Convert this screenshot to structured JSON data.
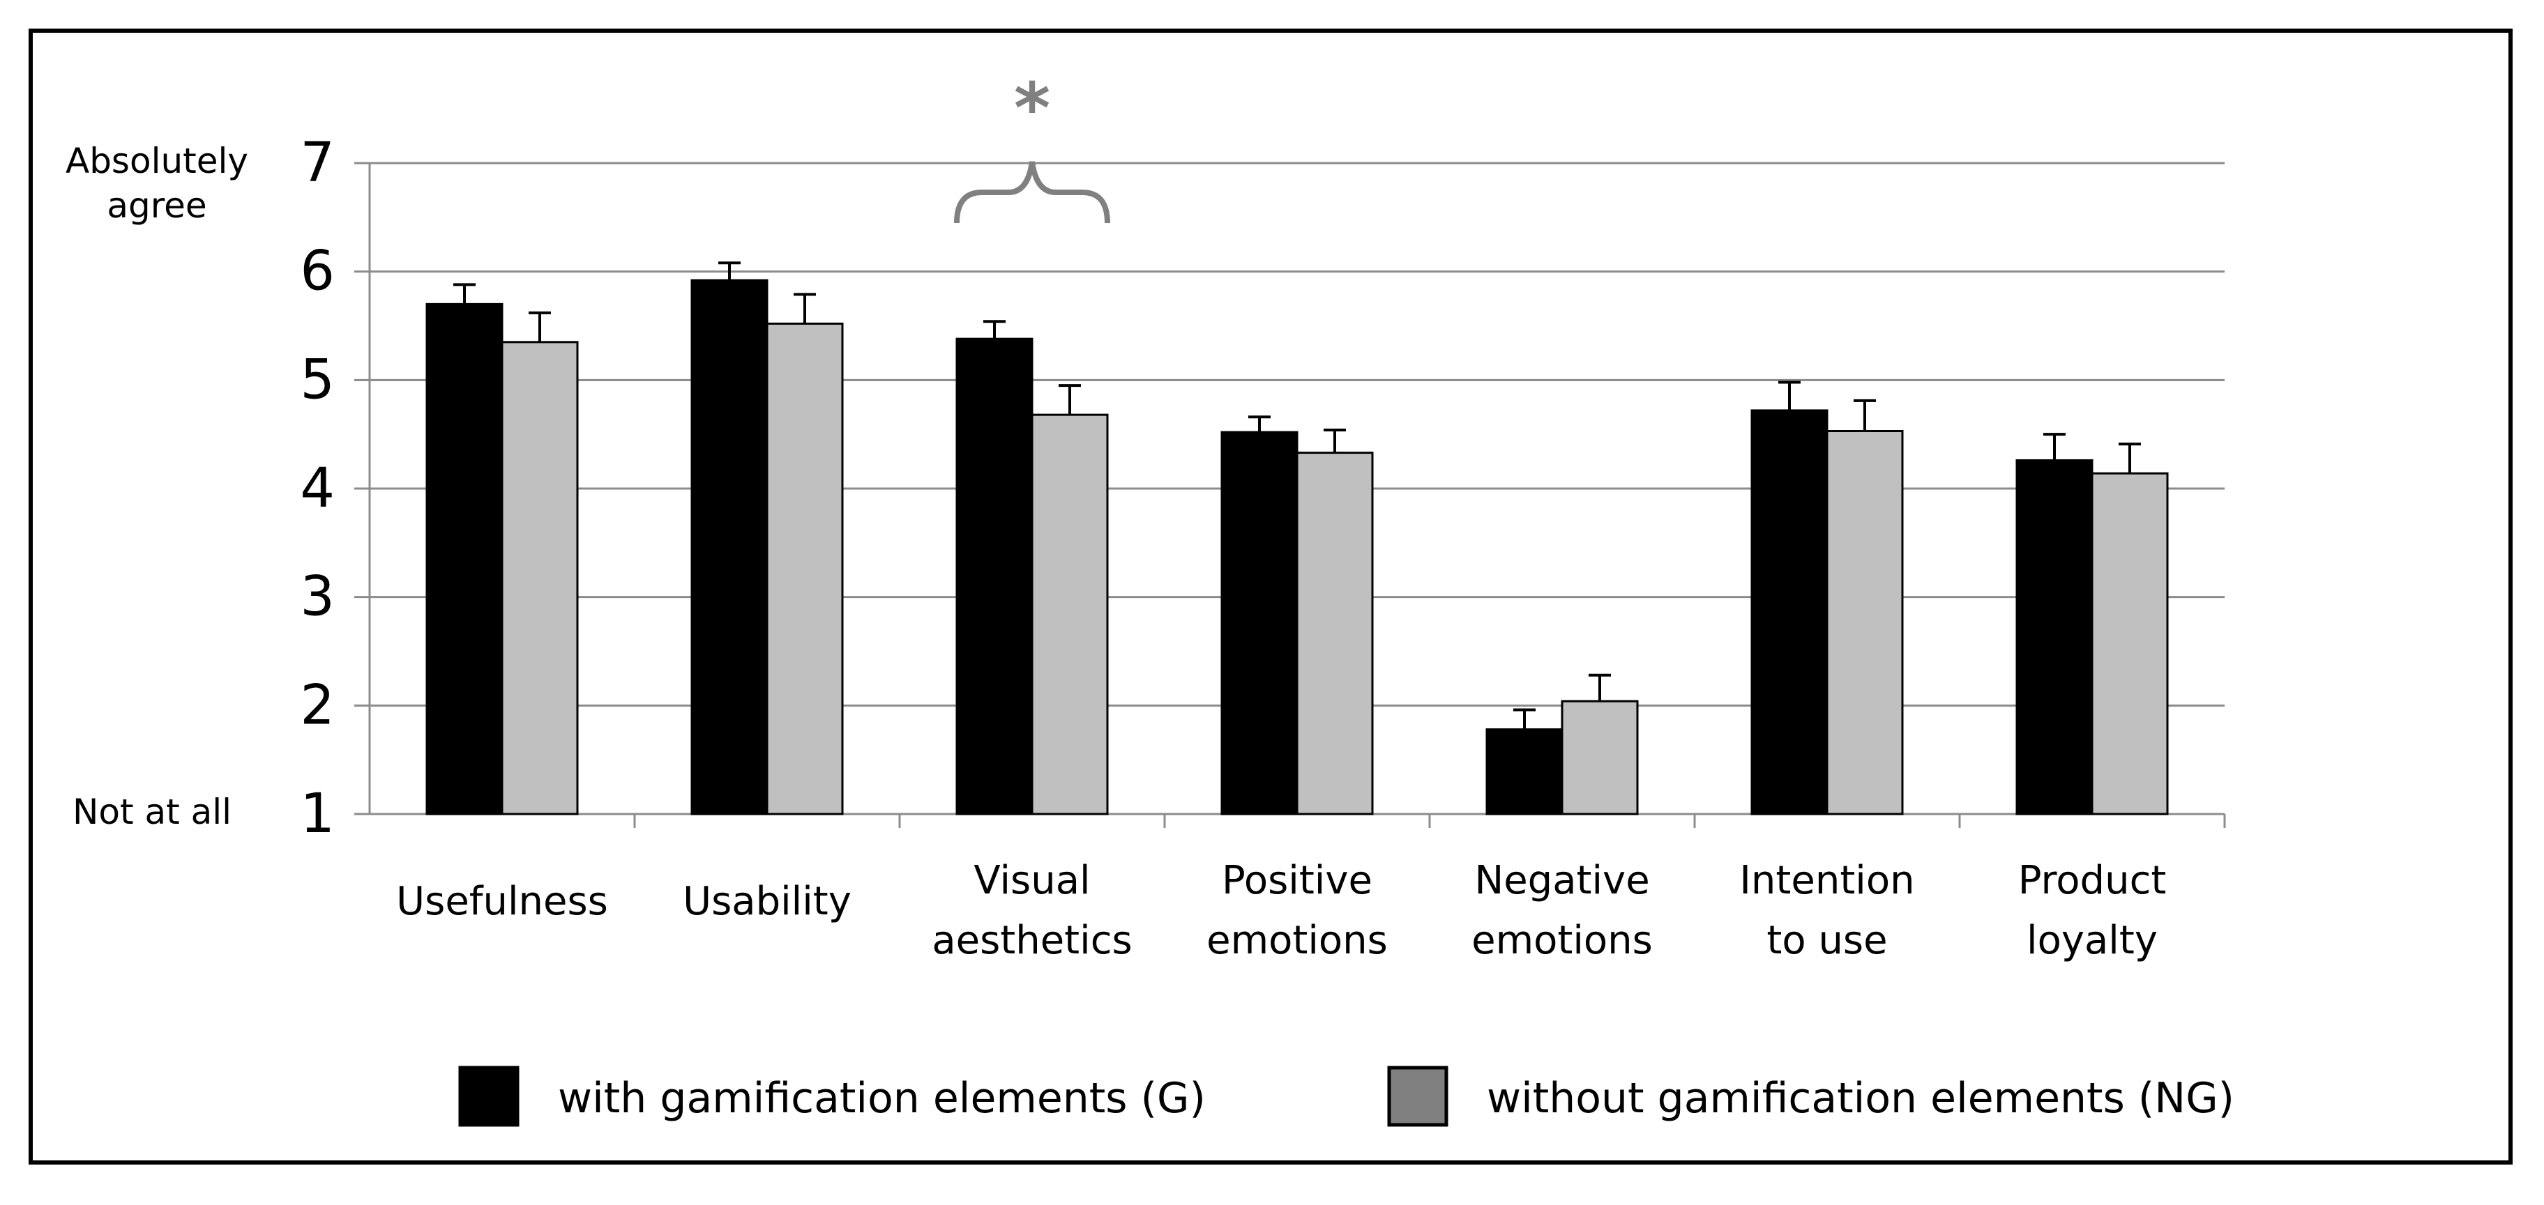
{
  "chart_data": {
    "type": "bar",
    "title": "",
    "xlabel": "",
    "ylabel": "",
    "ylim": [
      1,
      7
    ],
    "yticks": [
      "1",
      "2",
      "3",
      "4",
      "5",
      "6",
      "7"
    ],
    "y_top_label": [
      "Absolutely",
      "agree"
    ],
    "y_bottom_label": "Not at all",
    "categories": [
      [
        "Usefulness"
      ],
      [
        "Usability"
      ],
      [
        "Visual",
        "aesthetics"
      ],
      [
        "Positive",
        "emotions"
      ],
      [
        "Negative",
        "emotions"
      ],
      [
        "Intention",
        "to use"
      ],
      [
        "Product",
        "loyalty"
      ]
    ],
    "series": [
      {
        "name": "with gamification elements (G)",
        "color": "#000000",
        "values": [
          5.7,
          5.92,
          5.38,
          4.52,
          1.78,
          4.72,
          4.26
        ],
        "error": [
          0.18,
          0.16,
          0.16,
          0.14,
          0.18,
          0.26,
          0.24
        ]
      },
      {
        "name": "without gamification elements (NG)",
        "color": "#c0c0c0",
        "legend_color": "#808080",
        "values": [
          5.35,
          5.52,
          4.68,
          4.33,
          2.04,
          4.53,
          4.14
        ],
        "error": [
          0.27,
          0.27,
          0.27,
          0.21,
          0.24,
          0.28,
          0.27
        ]
      }
    ],
    "annotations": [
      {
        "text": "*",
        "category_index": 2,
        "type": "significance-brace",
        "color": "#808080"
      }
    ],
    "grid": true,
    "legend_position": "bottom"
  }
}
